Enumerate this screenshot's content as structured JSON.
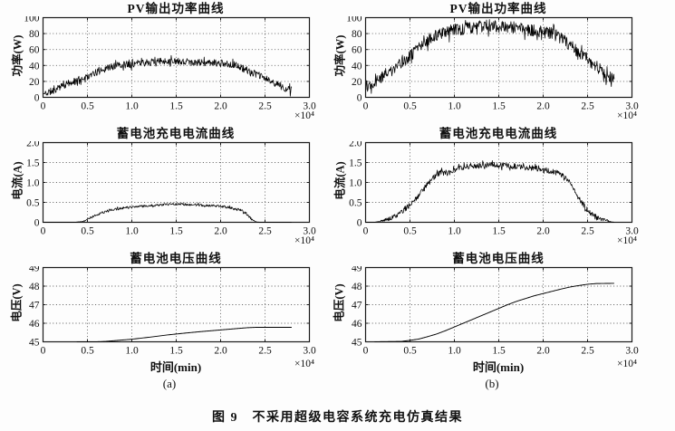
{
  "figure": {
    "caption": "图 9　不采用超级电容系统充电仿真结果",
    "x_multiplier": "×10⁴",
    "column_labels": [
      "(a)",
      "(b)"
    ]
  },
  "colors": {
    "line": "#000000",
    "grid": "#5a5a5a",
    "axis": "#1a1a1a",
    "text": "#111111",
    "background": "#fdfdfd"
  },
  "chart_data": [
    {
      "type": "line",
      "title": "PV输出功率曲线",
      "ylabel": "功率(W)",
      "xlim": [
        0,
        3
      ],
      "ylim": [
        0,
        100
      ],
      "xtick_vals": [
        0,
        0.5,
        1,
        1.5,
        2,
        2.5,
        3
      ],
      "xtick_labels": [
        "0",
        "0.5",
        "1.0",
        "1.5",
        "2.0",
        "2.5",
        "3.0"
      ],
      "ytick_vals": [
        0,
        20,
        40,
        60,
        80,
        100
      ],
      "ytick_labels": [
        "0",
        "20",
        "40",
        "60",
        "80",
        "100"
      ],
      "x_unit": "×10⁴",
      "noise": 4.5,
      "seed": 11,
      "profile": [
        [
          0,
          4
        ],
        [
          0.1,
          8
        ],
        [
          0.2,
          13
        ],
        [
          0.3,
          18
        ],
        [
          0.4,
          22
        ],
        [
          0.5,
          26
        ],
        [
          0.6,
          31
        ],
        [
          0.7,
          36
        ],
        [
          0.8,
          39
        ],
        [
          0.9,
          41
        ],
        [
          1.0,
          42
        ],
        [
          1.1,
          43
        ],
        [
          1.2,
          44
        ],
        [
          1.3,
          45
        ],
        [
          1.4,
          46
        ],
        [
          1.5,
          45
        ],
        [
          1.6,
          45
        ],
        [
          1.7,
          44
        ],
        [
          1.8,
          43
        ],
        [
          1.9,
          43
        ],
        [
          2.0,
          43
        ],
        [
          2.1,
          42
        ],
        [
          2.2,
          39
        ],
        [
          2.3,
          34
        ],
        [
          2.4,
          29
        ],
        [
          2.5,
          24
        ],
        [
          2.6,
          18
        ],
        [
          2.7,
          13
        ],
        [
          2.75,
          10
        ],
        [
          2.8,
          9
        ]
      ]
    },
    {
      "type": "line",
      "title": "PV输出功率曲线",
      "ylabel": "功率(W)",
      "xlim": [
        0,
        3
      ],
      "ylim": [
        0,
        100
      ],
      "xtick_vals": [
        0,
        0.5,
        1,
        1.5,
        2,
        2.5,
        3
      ],
      "xtick_labels": [
        "0",
        "0.5",
        "1.0",
        "1.5",
        "2.0",
        "2.5",
        "3.0"
      ],
      "ytick_vals": [
        0,
        20,
        40,
        60,
        80,
        100
      ],
      "ytick_labels": [
        "0",
        "20",
        "40",
        "60",
        "80",
        "100"
      ],
      "x_unit": "×10⁴",
      "noise": 8,
      "seed": 22,
      "profile": [
        [
          0,
          14
        ],
        [
          0.1,
          20
        ],
        [
          0.2,
          27
        ],
        [
          0.3,
          35
        ],
        [
          0.4,
          44
        ],
        [
          0.5,
          52
        ],
        [
          0.6,
          62
        ],
        [
          0.7,
          72
        ],
        [
          0.8,
          78
        ],
        [
          0.9,
          82
        ],
        [
          1.0,
          84
        ],
        [
          1.1,
          86
        ],
        [
          1.2,
          88
        ],
        [
          1.3,
          89
        ],
        [
          1.4,
          90
        ],
        [
          1.5,
          89
        ],
        [
          1.6,
          88
        ],
        [
          1.7,
          87
        ],
        [
          1.8,
          85
        ],
        [
          1.9,
          83
        ],
        [
          2.0,
          82
        ],
        [
          2.1,
          80
        ],
        [
          2.2,
          75
        ],
        [
          2.3,
          66
        ],
        [
          2.4,
          57
        ],
        [
          2.5,
          48
        ],
        [
          2.6,
          38
        ],
        [
          2.7,
          30
        ],
        [
          2.8,
          25
        ]
      ]
    },
    {
      "type": "line",
      "title": "蓄电池充电电流曲线",
      "ylabel": "电流(A)",
      "xlim": [
        0,
        3
      ],
      "ylim": [
        0,
        2
      ],
      "xtick_vals": [
        0,
        0.5,
        1,
        1.5,
        2,
        2.5,
        3
      ],
      "xtick_labels": [
        "0",
        "0.5",
        "1.0",
        "1.5",
        "2.0",
        "2.5",
        "3.0"
      ],
      "ytick_vals": [
        0,
        0.5,
        1,
        1.5,
        2
      ],
      "ytick_labels": [
        "0",
        "0.5",
        "1.0",
        "1.5",
        "2.0"
      ],
      "x_unit": "×10⁴",
      "noise": 0.03,
      "seed": 33,
      "profile": [
        [
          0,
          0
        ],
        [
          0.35,
          0
        ],
        [
          0.45,
          0.02
        ],
        [
          0.5,
          0.08
        ],
        [
          0.6,
          0.18
        ],
        [
          0.7,
          0.27
        ],
        [
          0.8,
          0.32
        ],
        [
          0.9,
          0.36
        ],
        [
          1.0,
          0.38
        ],
        [
          1.1,
          0.4
        ],
        [
          1.2,
          0.42
        ],
        [
          1.3,
          0.43
        ],
        [
          1.4,
          0.45
        ],
        [
          1.5,
          0.46
        ],
        [
          1.6,
          0.45
        ],
        [
          1.7,
          0.44
        ],
        [
          1.8,
          0.43
        ],
        [
          1.9,
          0.42
        ],
        [
          2.0,
          0.4
        ],
        [
          2.1,
          0.37
        ],
        [
          2.2,
          0.33
        ],
        [
          2.25,
          0.28
        ],
        [
          2.3,
          0.18
        ],
        [
          2.35,
          0.08
        ],
        [
          2.4,
          0.01
        ],
        [
          2.45,
          0
        ],
        [
          2.8,
          0
        ]
      ]
    },
    {
      "type": "line",
      "title": "蓄电池充电电流曲线",
      "ylabel": "电流(A)",
      "xlim": [
        0,
        3
      ],
      "ylim": [
        0,
        2
      ],
      "xtick_vals": [
        0,
        0.5,
        1,
        1.5,
        2,
        2.5,
        3
      ],
      "xtick_labels": [
        "0",
        "0.5",
        "1.0",
        "1.5",
        "2.0",
        "2.5",
        "3.0"
      ],
      "ytick_vals": [
        0,
        0.5,
        1,
        1.5,
        2
      ],
      "ytick_labels": [
        "0",
        "0.5",
        "1.0",
        "1.5",
        "2.0"
      ],
      "x_unit": "×10⁴",
      "noise": 0.07,
      "seed": 44,
      "profile": [
        [
          0,
          0
        ],
        [
          0.1,
          0
        ],
        [
          0.15,
          0.02
        ],
        [
          0.2,
          0.05
        ],
        [
          0.3,
          0.12
        ],
        [
          0.4,
          0.25
        ],
        [
          0.5,
          0.45
        ],
        [
          0.55,
          0.55
        ],
        [
          0.6,
          0.68
        ],
        [
          0.7,
          0.95
        ],
        [
          0.75,
          1.1
        ],
        [
          0.8,
          1.2
        ],
        [
          0.85,
          1.25
        ],
        [
          0.9,
          1.22
        ],
        [
          0.95,
          1.25
        ],
        [
          1.0,
          1.3
        ],
        [
          1.1,
          1.38
        ],
        [
          1.2,
          1.42
        ],
        [
          1.3,
          1.42
        ],
        [
          1.4,
          1.45
        ],
        [
          1.5,
          1.43
        ],
        [
          1.6,
          1.42
        ],
        [
          1.7,
          1.4
        ],
        [
          1.8,
          1.38
        ],
        [
          1.9,
          1.36
        ],
        [
          2.0,
          1.32
        ],
        [
          2.1,
          1.28
        ],
        [
          2.15,
          1.25
        ],
        [
          2.2,
          1.2
        ],
        [
          2.3,
          1.0
        ],
        [
          2.4,
          0.6
        ],
        [
          2.5,
          0.3
        ],
        [
          2.6,
          0.12
        ],
        [
          2.7,
          0.06
        ],
        [
          2.75,
          0.02
        ],
        [
          2.8,
          0
        ]
      ]
    },
    {
      "type": "line",
      "title": "蓄电池电压曲线",
      "ylabel": "电压(V)",
      "xlabel": "时间(min)",
      "xlim": [
        0,
        3
      ],
      "ylim": [
        45,
        49
      ],
      "xtick_vals": [
        0,
        0.5,
        1,
        1.5,
        2,
        2.5,
        3
      ],
      "xtick_labels": [
        "0",
        "0.5",
        "1.0",
        "1.5",
        "2.0",
        "2.5",
        "3.0"
      ],
      "ytick_vals": [
        45,
        46,
        47,
        48,
        49
      ],
      "ytick_labels": [
        "45",
        "46",
        "47",
        "48",
        "49"
      ],
      "x_unit": "×10⁴",
      "noise": 0,
      "seed": 0,
      "profile": [
        [
          0.38,
          44.98
        ],
        [
          0.6,
          45.0
        ],
        [
          0.7,
          45.02
        ],
        [
          0.8,
          45.06
        ],
        [
          0.9,
          45.1
        ],
        [
          1.0,
          45.14
        ],
        [
          1.2,
          45.25
        ],
        [
          1.4,
          45.37
        ],
        [
          1.6,
          45.47
        ],
        [
          1.8,
          45.56
        ],
        [
          2.0,
          45.64
        ],
        [
          2.1,
          45.68
        ],
        [
          2.2,
          45.72
        ],
        [
          2.3,
          45.76
        ],
        [
          2.4,
          45.78
        ],
        [
          2.5,
          45.78
        ],
        [
          2.8,
          45.78
        ]
      ]
    },
    {
      "type": "line",
      "title": "蓄电池电压曲线",
      "ylabel": "电压(V)",
      "xlabel": "时间(min)",
      "xlim": [
        0,
        3
      ],
      "ylim": [
        45,
        49
      ],
      "xtick_vals": [
        0,
        0.5,
        1,
        1.5,
        2,
        2.5,
        3
      ],
      "xtick_labels": [
        "0",
        "0.5",
        "1.0",
        "1.5",
        "2.0",
        "2.5",
        "3.0"
      ],
      "ytick_vals": [
        45,
        46,
        47,
        48,
        49
      ],
      "ytick_labels": [
        "45",
        "46",
        "47",
        "48",
        "49"
      ],
      "x_unit": "×10⁴",
      "noise": 0,
      "seed": 0,
      "profile": [
        [
          0.1,
          45.0
        ],
        [
          0.4,
          45.02
        ],
        [
          0.5,
          45.08
        ],
        [
          0.6,
          45.15
        ],
        [
          0.7,
          45.28
        ],
        [
          0.8,
          45.42
        ],
        [
          0.9,
          45.6
        ],
        [
          1.0,
          45.8
        ],
        [
          1.1,
          46.0
        ],
        [
          1.2,
          46.2
        ],
        [
          1.3,
          46.4
        ],
        [
          1.4,
          46.6
        ],
        [
          1.5,
          46.8
        ],
        [
          1.6,
          47.0
        ],
        [
          1.7,
          47.18
        ],
        [
          1.8,
          47.33
        ],
        [
          1.9,
          47.48
        ],
        [
          2.0,
          47.6
        ],
        [
          2.1,
          47.72
        ],
        [
          2.2,
          47.84
        ],
        [
          2.3,
          47.95
        ],
        [
          2.4,
          48.03
        ],
        [
          2.5,
          48.1
        ],
        [
          2.55,
          48.12
        ],
        [
          2.6,
          48.14
        ],
        [
          2.8,
          48.15
        ]
      ]
    }
  ]
}
